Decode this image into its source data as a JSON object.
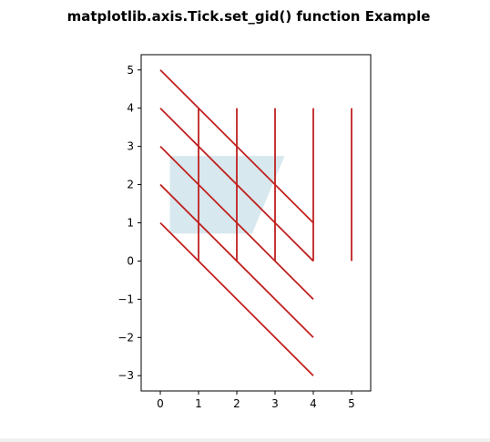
{
  "chart_data": {
    "type": "line",
    "title": "matplotlib.axis.Tick.set_gid() function Example",
    "xlabel": "",
    "ylabel": "",
    "xlim": [
      -0.5,
      5.5
    ],
    "ylim": [
      -3.4,
      5.4
    ],
    "xticks": [
      0,
      1,
      2,
      3,
      4,
      5
    ],
    "yticks": [
      -3,
      -2,
      -1,
      0,
      1,
      2,
      3,
      4,
      5
    ],
    "xtick_labels": [
      "0",
      "1",
      "2",
      "3",
      "4",
      "5"
    ],
    "ytick_labels": [
      "−3",
      "−2",
      "−1",
      "0",
      "1",
      "2",
      "3",
      "4",
      "5"
    ],
    "grid": false,
    "line_color": "#c0201f",
    "fill_color": "#d7e8ee",
    "series": [
      {
        "x": [
          0,
          4
        ],
        "y": [
          5,
          1
        ]
      },
      {
        "x": [
          0,
          4
        ],
        "y": [
          4,
          0
        ]
      },
      {
        "x": [
          0,
          4
        ],
        "y": [
          3,
          -1
        ]
      },
      {
        "x": [
          0,
          4
        ],
        "y": [
          2,
          -2
        ]
      },
      {
        "x": [
          0,
          4
        ],
        "y": [
          1,
          -3
        ]
      },
      {
        "x": [
          1,
          1
        ],
        "y": [
          0,
          4
        ]
      },
      {
        "x": [
          2,
          2
        ],
        "y": [
          0,
          4
        ]
      },
      {
        "x": [
          3,
          3
        ],
        "y": [
          0,
          4
        ]
      },
      {
        "x": [
          4,
          4
        ],
        "y": [
          0,
          4
        ]
      },
      {
        "x": [
          5,
          5
        ],
        "y": [
          0,
          4
        ]
      }
    ],
    "filled_region": {
      "x": [
        0.25,
        3.25,
        2.4,
        0.25
      ],
      "y": [
        2.75,
        2.75,
        0.72,
        0.72
      ]
    }
  }
}
